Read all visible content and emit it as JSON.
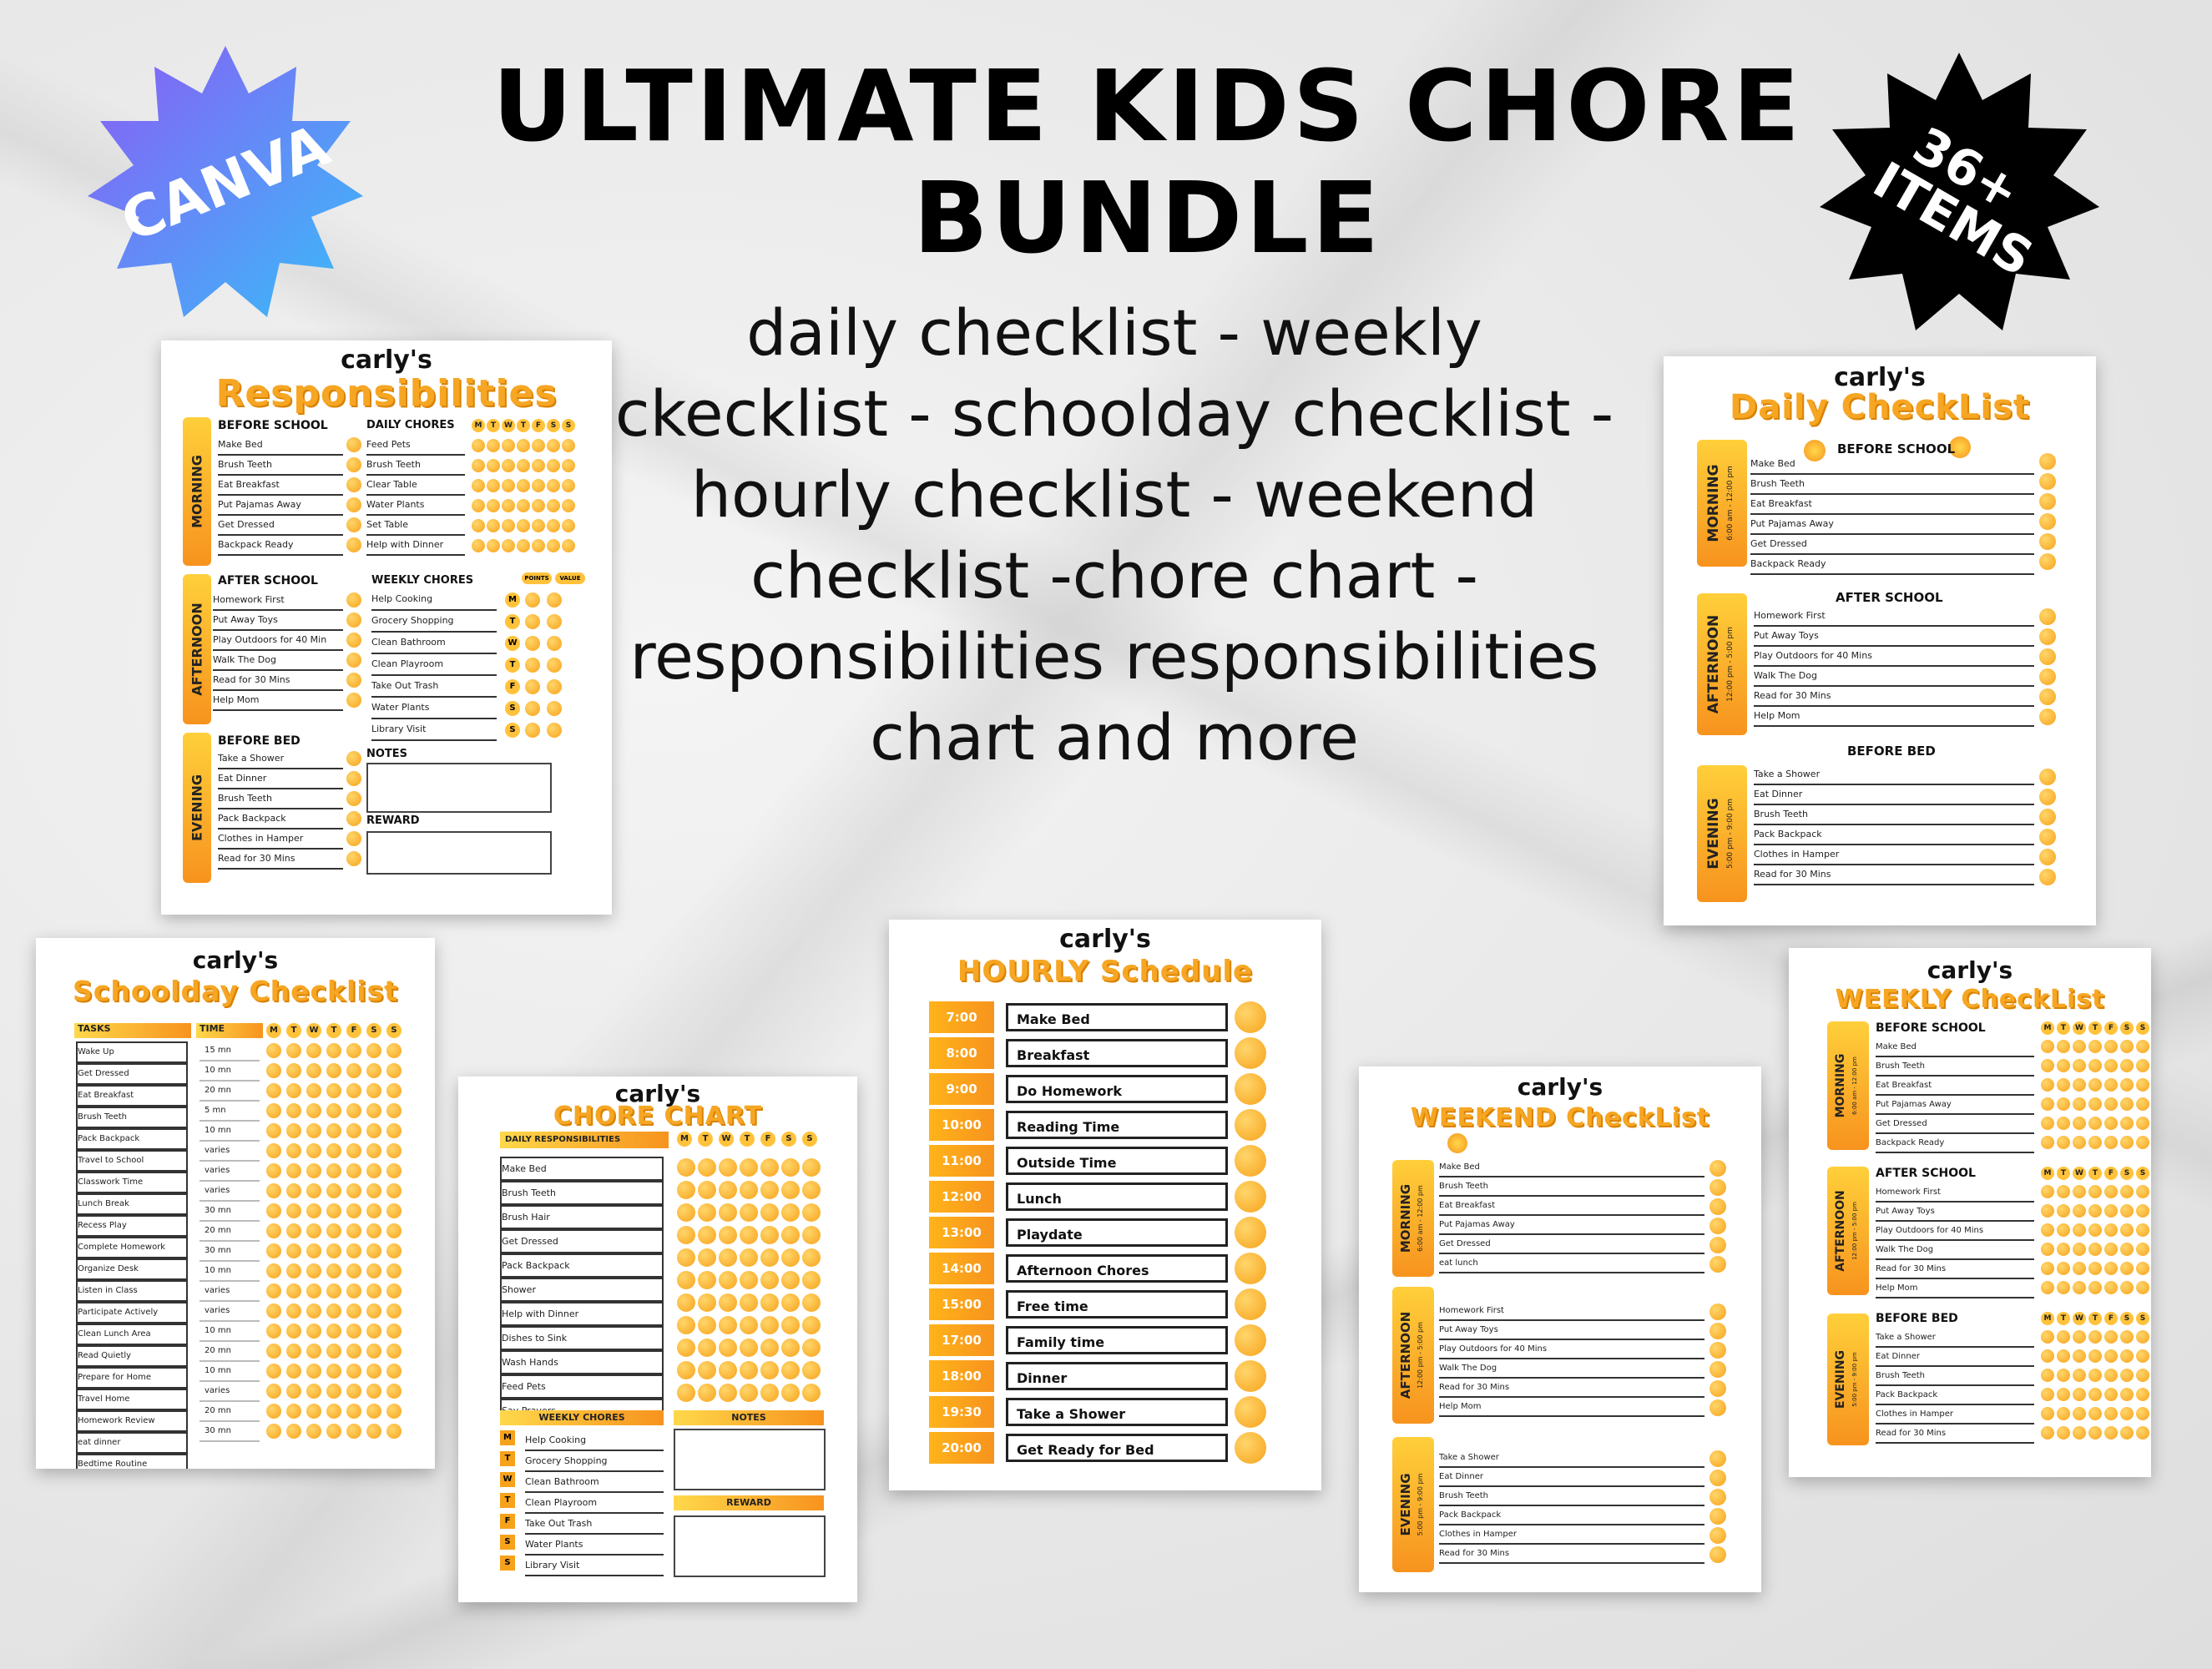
{
  "title_line1": "ULTIMATE KIDS CHORE",
  "title_line2": "BUNDLE",
  "subtitle": "daily checklist - weekly ckecklist - schoolday checklist -hourly checklist - weekend checklist -chore chart -responsibilities responsibilities  chart and more",
  "badges": {
    "canva": "CANVA",
    "items_1": "36+",
    "items_2": "ITEMS"
  },
  "colors": {
    "accent": "#f7a21b",
    "badge_start": "#8b5cf6",
    "badge_end": "#38bdf8",
    "badge_dark": "#000000"
  },
  "days": [
    "M",
    "T",
    "W",
    "T",
    "F",
    "S",
    "S"
  ],
  "responsibilities": {
    "name": "carly's",
    "title": "Responsibilities",
    "morning_label": "MORNING",
    "afternoon_label": "AFTERNOON",
    "evening_label": "EVENING",
    "before_school": "BEFORE SCHOOL",
    "after_school": "AFTER SCHOOL",
    "before_bed": "BEFORE BED",
    "daily_chores": "DAILY CHORES",
    "weekly_chores": "WEEKLY CHORES",
    "notes": "NOTES",
    "reward": "REWARD",
    "points": "POINTS",
    "value": "VALUE",
    "morning": [
      "Make Bed",
      "Brush Teeth",
      "Eat Breakfast",
      "Put Pajamas Away",
      "Get Dressed",
      "Backpack Ready"
    ],
    "afternoon": [
      "Homework First",
      "Put Away Toys",
      "Play Outdoors for 40 Min",
      "Walk The Dog",
      "Read for 30 Mins",
      "Help Mom"
    ],
    "evening": [
      "Take a Shower",
      "Eat Dinner",
      "Brush Teeth",
      "Pack Backpack",
      "Clothes in Hamper",
      "Read  for 30 Mins"
    ],
    "daily": [
      "Feed Pets",
      "Brush Teeth",
      "Clear Table",
      "Water Plants",
      "Set Table",
      "Help with Dinner"
    ],
    "weekly": [
      "Help Cooking",
      "Grocery Shopping",
      "Clean Bathroom",
      "Clean Playroom",
      "Take Out Trash",
      "Water Plants",
      "Library Visit"
    ],
    "weekly_days": [
      "M",
      "T",
      "W",
      "T",
      "F",
      "S",
      "S"
    ]
  },
  "daily_checklist": {
    "name": "carly's",
    "title": "Daily CheckList",
    "before_school": "BEFORE SCHOOL",
    "after_school": "AFTER SCHOOL",
    "before_bed": "BEFORE BED",
    "morning_label": "MORNING",
    "morning_time": "6:00 am - 12:00 pm",
    "afternoon_label": "AFTERNOON",
    "afternoon_time": "12:00 pm - 5:00 pm",
    "evening_label": "EVENING",
    "evening_time": "5:00 pm - 9:00 pm",
    "morning": [
      "Make Bed",
      "Brush Teeth",
      "Eat Breakfast",
      "Put Pajamas Away",
      "Get Dressed",
      "Backpack Ready"
    ],
    "afternoon": [
      "Homework First",
      "Put Away Toys",
      "Play Outdoors for 40 Mins",
      "Walk The Dog",
      "Read for 30 Mins",
      "Help Mom"
    ],
    "evening": [
      "Take a Shower",
      "Eat Dinner",
      "Brush Teeth",
      "Pack Backpack",
      "Clothes in Hamper",
      "Read  for 30 Mins"
    ]
  },
  "schoolday": {
    "name": "carly's",
    "title": "Schoolday Checklist",
    "tasks_header": "TASKS",
    "time_header": "TIME",
    "tasks": [
      "Wake Up",
      "Get Dressed",
      "Eat Breakfast",
      "Brush Teeth",
      "Pack Backpack",
      "Travel to School",
      "Classwork Time",
      "Lunch Break",
      "Recess Play",
      "Complete Homework",
      "Organize Desk",
      "Listen in Class",
      "Participate Actively",
      "Clean Lunch Area",
      "Read Quietly",
      "Prepare for Home",
      "Travel Home",
      "Homework Review",
      "eat dinner",
      "Bedtime Routine"
    ],
    "times": [
      "15 mn",
      "10 mn",
      "20 mn",
      "5 mn",
      "10 mn",
      "varies",
      "varies",
      "varies",
      "30 mn",
      "20 mn",
      "30 mn",
      "10 mn",
      "varies",
      "varies",
      "10 mn",
      "20 mn",
      "10 mn",
      "varies",
      "20 mn",
      "30 mn"
    ]
  },
  "chore_chart": {
    "name": "carly's",
    "title": "CHORE CHART",
    "daily_header": "DAILY RESPONSIBILITIES",
    "daily": [
      "Make Bed",
      "Brush Teeth",
      "Brush Hair",
      "Get Dressed",
      "Pack Backpack",
      "Shower",
      "Help with Dinner",
      "Dishes to Sink",
      "Wash Hands",
      "Feed Pets",
      "Say Prayers"
    ],
    "weekly_header": "WEEKLY CHORES",
    "weekly": [
      "Help Cooking",
      "Grocery Shopping",
      "Clean Bathroom",
      "Clean Playroom",
      "Take Out Trash",
      "Water Plants",
      "Library Visit"
    ],
    "weekly_days": [
      "M",
      "T",
      "W",
      "T",
      "F",
      "S",
      "S"
    ],
    "notes": "NOTES",
    "reward": "REWARD"
  },
  "hourly": {
    "name": "carly's",
    "title": "HOURLY Schedule",
    "rows": [
      {
        "time": "7:00",
        "task": "Make Bed"
      },
      {
        "time": "8:00",
        "task": "Breakfast"
      },
      {
        "time": "9:00",
        "task": "Do Homework"
      },
      {
        "time": "10:00",
        "task": "Reading Time"
      },
      {
        "time": "11:00",
        "task": "Outside Time"
      },
      {
        "time": "12:00",
        "task": "Lunch"
      },
      {
        "time": "13:00",
        "task": "Playdate"
      },
      {
        "time": "14:00",
        "task": "Afternoon Chores"
      },
      {
        "time": "15:00",
        "task": "Free time"
      },
      {
        "time": "17:00",
        "task": "Family time"
      },
      {
        "time": "18:00",
        "task": "Dinner"
      },
      {
        "time": "19:30",
        "task": "Take a Shower"
      },
      {
        "time": "20:00",
        "task": "Get Ready for Bed"
      }
    ]
  },
  "weekend": {
    "name": "carly's",
    "title": "WEEKEND CheckList",
    "morning_label": "MORNING",
    "morning_time": "6:00 am - 12:00 pm",
    "afternoon_label": "AFTERNOON",
    "afternoon_time": "12:00 pm - 5:00 pm",
    "evening_label": "EVENING",
    "evening_time": "5:00 pm - 9:00 pm",
    "morning": [
      "Make Bed",
      "Brush Teeth",
      "Eat Breakfast",
      "Put Pajamas Away",
      "Get Dressed",
      "eat lunch"
    ],
    "afternoon": [
      "Homework First",
      "Put Away Toys",
      "Play Outdoors for 40 Mins",
      "Walk The Dog",
      "Read for 30 Mins",
      "Help Mom"
    ],
    "evening": [
      "Take a Shower",
      "Eat Dinner",
      "Brush Teeth",
      "Pack Backpack",
      "Clothes in Hamper",
      "Read  for 30 Mins"
    ]
  },
  "weekly": {
    "name": "carly's",
    "title": "WEEKLY CheckList",
    "before_school": "BEFORE SCHOOL",
    "after_school": "AFTER SCHOOL",
    "before_bed": "BEFORE BED",
    "morning_label": "MORNING",
    "morning_time": "6:00 am - 12:00 pm",
    "afternoon_label": "AFTERNOON",
    "afternoon_time": "12:00 pm - 5:00 pm",
    "evening_label": "EVENING",
    "evening_time": "5:00 pm - 9:00 pm",
    "morning": [
      "Make Bed",
      "Brush Teeth",
      "Eat Breakfast",
      "Put Pajamas Away",
      "Get Dressed",
      "Backpack Ready"
    ],
    "afternoon": [
      "Homework First",
      "Put Away Toys",
      "Play Outdoors for 40 Mins",
      "Walk The Dog",
      "Read for 30 Mins",
      "Help Mom"
    ],
    "evening": [
      "Take a Shower",
      "Eat Dinner",
      "Brush Teeth",
      "Pack Backpack",
      "Clothes in Hamper",
      "Read  for 30 Mins"
    ]
  }
}
